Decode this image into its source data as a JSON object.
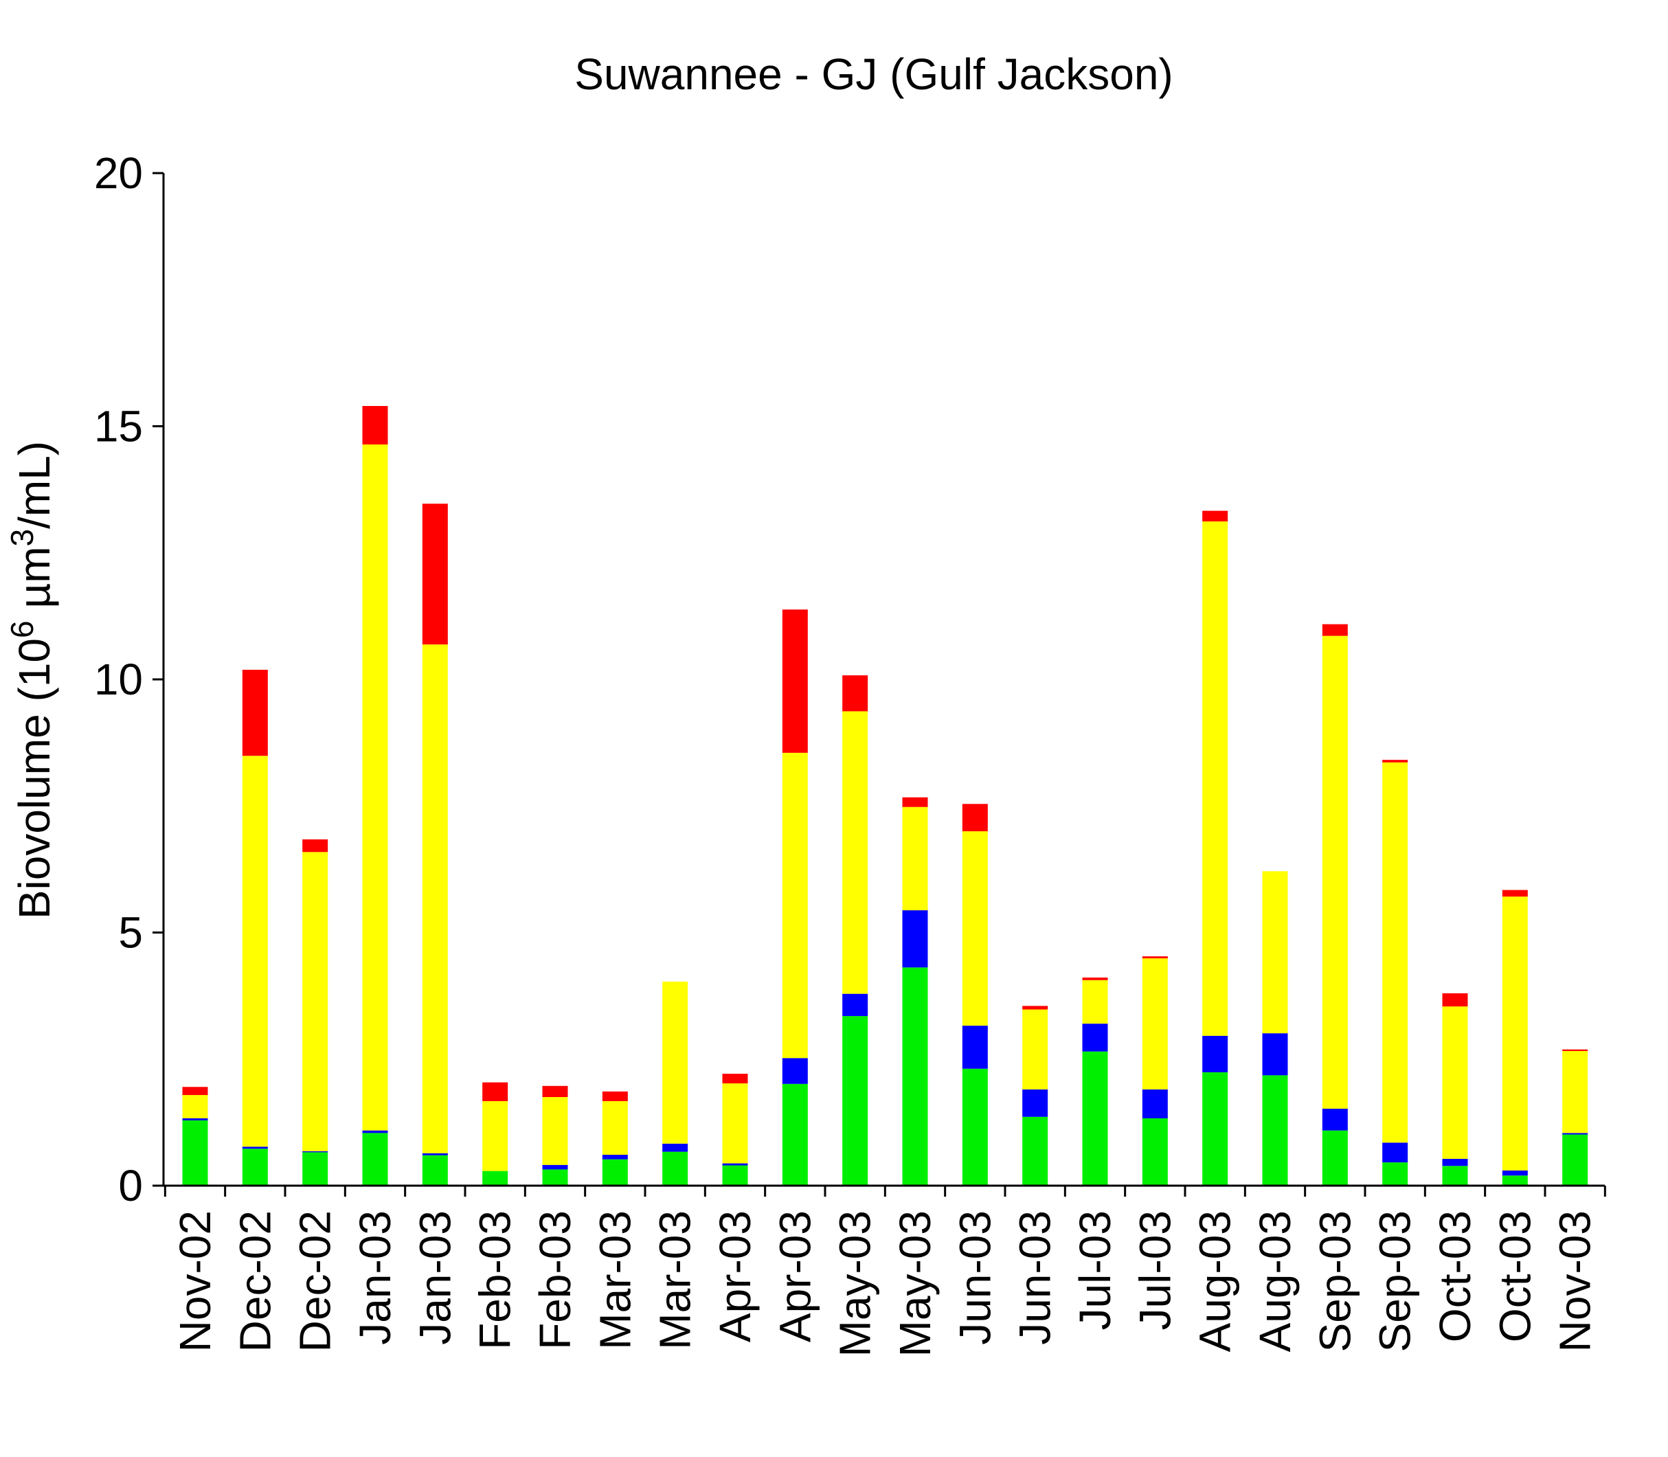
{
  "title": "Suwannee - GJ (Gulf Jackson)",
  "y_axis": {
    "label_pre": "Biovolume (10",
    "label_sup1": "6",
    "label_mid": " µm",
    "label_sup2": "3",
    "label_post": "/mL)",
    "ticks": [
      0,
      5,
      10,
      15,
      20
    ]
  },
  "chart_data": {
    "type": "bar",
    "stacked": true,
    "title": "Suwannee - GJ (Gulf Jackson)",
    "xlabel": "",
    "ylabel": "Biovolume (10^6 um^3/mL)",
    "ylim": [
      0,
      20
    ],
    "yticks": [
      0,
      5,
      10,
      15,
      20
    ],
    "grid": false,
    "legend": "none",
    "categories": [
      "Nov-02",
      "Dec-02",
      "Dec-02",
      "Jan-03",
      "Jan-03",
      "Feb-03",
      "Feb-03",
      "Mar-03",
      "Mar-03",
      "Apr-03",
      "Apr-03",
      "May-03",
      "May-03",
      "Jun-03",
      "Jun-03",
      "Jul-03",
      "Jul-03",
      "Aug-03",
      "Aug-03",
      "Sep-03",
      "Sep-03",
      "Oct-03",
      "Oct-03",
      "Nov-03"
    ],
    "series": [
      {
        "name": "green",
        "color": "#00EE00",
        "values": [
          1.29,
          0.73,
          0.66,
          1.04,
          0.6,
          0.29,
          0.32,
          0.52,
          0.67,
          0.4,
          2.01,
          3.35,
          4.31,
          2.31,
          1.36,
          2.65,
          1.33,
          2.24,
          2.18,
          1.09,
          0.46,
          0.39,
          0.2,
          1.01
        ]
      },
      {
        "name": "blue",
        "color": "#0000FF",
        "values": [
          0.04,
          0.04,
          0.02,
          0.05,
          0.04,
          0.0,
          0.09,
          0.09,
          0.16,
          0.04,
          0.51,
          0.44,
          1.13,
          0.85,
          0.54,
          0.55,
          0.57,
          0.72,
          0.83,
          0.43,
          0.39,
          0.14,
          0.1,
          0.03
        ]
      },
      {
        "name": "yellow",
        "color": "#FFFF00",
        "values": [
          0.46,
          7.72,
          5.91,
          13.55,
          10.05,
          1.38,
          1.34,
          1.06,
          3.2,
          1.58,
          6.03,
          5.58,
          2.04,
          3.84,
          1.58,
          0.86,
          2.59,
          10.16,
          3.2,
          9.34,
          7.51,
          3.01,
          5.41,
          1.62
        ]
      },
      {
        "name": "red",
        "color": "#FF0000",
        "values": [
          0.16,
          1.7,
          0.25,
          0.76,
          2.78,
          0.37,
          0.22,
          0.19,
          0.0,
          0.19,
          2.83,
          0.71,
          0.19,
          0.54,
          0.07,
          0.05,
          0.04,
          0.21,
          0.0,
          0.23,
          0.05,
          0.26,
          0.13,
          0.03
        ]
      }
    ],
    "totals": [
      1.95,
      10.19,
      6.84,
      15.4,
      13.47,
      2.04,
      1.97,
      1.86,
      4.03,
      2.21,
      11.38,
      10.08,
      7.67,
      7.54,
      3.55,
      4.11,
      4.53,
      13.33,
      6.21,
      11.09,
      8.41,
      3.8,
      5.84,
      2.69
    ]
  }
}
